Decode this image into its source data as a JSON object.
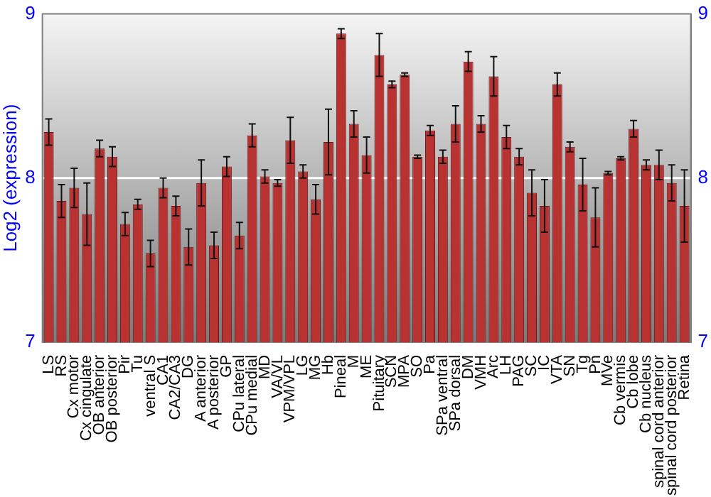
{
  "chart_data": {
    "type": "bar",
    "ylabel": "Log2 (expression)",
    "categories": [
      "LS",
      "RS",
      "Cx motor",
      "Cx cingulate",
      "OB anterior",
      "OB posterior",
      "Pir",
      "Tu",
      "ventral S",
      "CA1",
      "CA2/CA3",
      "DG",
      "A anterior",
      "A posterior",
      "GP",
      "CPu lateral",
      "CPu medial",
      "MD",
      "VA/VL",
      "VPM/VPL",
      "LG",
      "MG",
      "Hb",
      "Pineal",
      "M",
      "ME",
      "Pituitary",
      "SCN",
      "MPA",
      "SO",
      "Pa",
      "SPa ventral",
      "SPa dorsal",
      "DM",
      "VMH",
      "Arc",
      "LH",
      "PAG",
      "SC",
      "IC",
      "VTA",
      "SN",
      "Tg",
      "Pn",
      "MVe",
      "Cb vermis",
      "Cb lobe",
      "Cb nucleus",
      "spinal cord anterior",
      "spinal cord posterior",
      "Retina"
    ],
    "values": [
      8.28,
      7.86,
      7.94,
      7.78,
      8.18,
      8.13,
      7.72,
      7.84,
      7.54,
      7.94,
      7.83,
      7.58,
      7.97,
      7.59,
      8.07,
      7.65,
      8.26,
      8.01,
      7.97,
      8.23,
      8.04,
      7.87,
      8.22,
      8.88,
      8.33,
      8.14,
      8.75,
      8.57,
      8.63,
      8.13,
      8.29,
      8.13,
      8.33,
      8.71,
      8.33,
      8.62,
      8.25,
      8.13,
      7.91,
      7.83,
      8.57,
      8.19,
      7.96,
      7.76,
      8.03,
      8.12,
      8.3,
      8.08,
      8.08,
      7.97,
      7.83
    ],
    "errors": [
      0.08,
      0.1,
      0.12,
      0.19,
      0.05,
      0.06,
      0.07,
      0.03,
      0.08,
      0.06,
      0.06,
      0.11,
      0.14,
      0.08,
      0.06,
      0.08,
      0.07,
      0.04,
      0.02,
      0.14,
      0.04,
      0.09,
      0.2,
      0.03,
      0.08,
      0.11,
      0.13,
      0.02,
      0.01,
      0.01,
      0.03,
      0.04,
      0.11,
      0.06,
      0.05,
      0.12,
      0.07,
      0.05,
      0.14,
      0.16,
      0.07,
      0.03,
      0.16,
      0.18,
      0.01,
      0.01,
      0.05,
      0.03,
      0.09,
      0.11,
      0.22
    ],
    "color": "#b83232",
    "ylim": [
      7,
      9
    ],
    "yticks": [
      7,
      8,
      9
    ],
    "y2lim": [
      7,
      9
    ],
    "y2ticks": [
      7,
      8,
      9
    ],
    "grid": "y",
    "legend": false
  }
}
